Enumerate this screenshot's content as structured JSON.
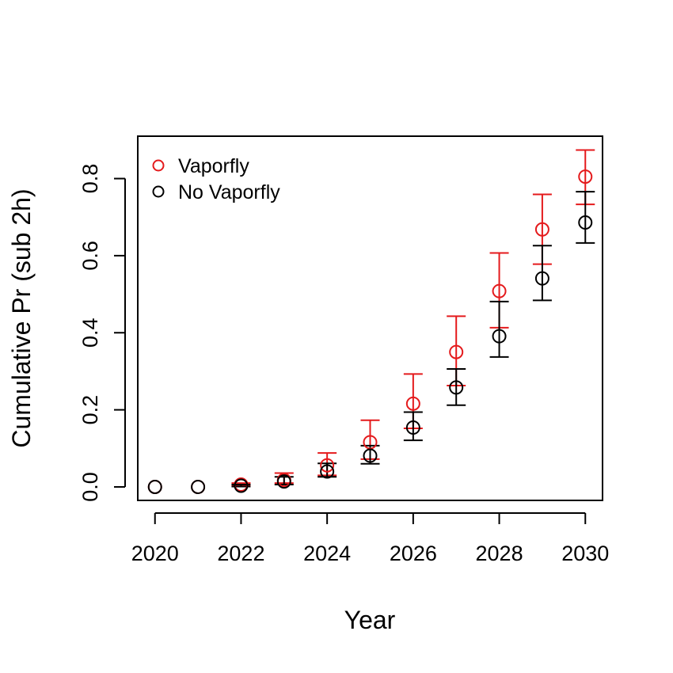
{
  "chart_data": {
    "type": "scatter",
    "title": "",
    "xlabel": "Year",
    "ylabel": "Cumulative Pr (sub 2h)",
    "xlim": [
      2019.6,
      2030.4
    ],
    "ylim": [
      -0.035,
      0.91
    ],
    "xticks": [
      2020,
      2022,
      2024,
      2026,
      2028,
      2030
    ],
    "xtick_labels": [
      "2020",
      "2022",
      "2024",
      "2026",
      "2028",
      "2030"
    ],
    "yticks": [
      0.0,
      0.2,
      0.4,
      0.6,
      0.8
    ],
    "ytick_labels": [
      "0.0",
      "0.2",
      "0.4",
      "0.6",
      "0.8"
    ],
    "grid": false,
    "legend_position": "top-left",
    "x": [
      2020,
      2021,
      2022,
      2023,
      2024,
      2025,
      2026,
      2027,
      2028,
      2029,
      2030
    ],
    "series": [
      {
        "name": "Vaporfly",
        "color": "#e41a1c",
        "values": [
          0.0,
          0.0,
          0.006,
          0.018,
          0.056,
          0.116,
          0.216,
          0.35,
          0.508,
          0.668,
          0.805
        ],
        "lower": [
          0.0,
          0.0,
          0.003,
          0.01,
          0.03,
          0.072,
          0.152,
          0.263,
          0.413,
          0.578,
          0.733
        ],
        "upper": [
          0.0,
          0.0,
          0.01,
          0.036,
          0.088,
          0.173,
          0.293,
          0.443,
          0.607,
          0.759,
          0.874
        ]
      },
      {
        "name": "No Vaporfly",
        "color": "#000000",
        "values": [
          0.0,
          0.0,
          0.003,
          0.014,
          0.04,
          0.081,
          0.154,
          0.258,
          0.391,
          0.541,
          0.686
        ],
        "lower": [
          0.0,
          0.0,
          0.001,
          0.006,
          0.026,
          0.06,
          0.121,
          0.212,
          0.337,
          0.484,
          0.633
        ],
        "upper": [
          0.0,
          0.0,
          0.006,
          0.026,
          0.061,
          0.107,
          0.194,
          0.306,
          0.481,
          0.626,
          0.766
        ]
      }
    ]
  }
}
